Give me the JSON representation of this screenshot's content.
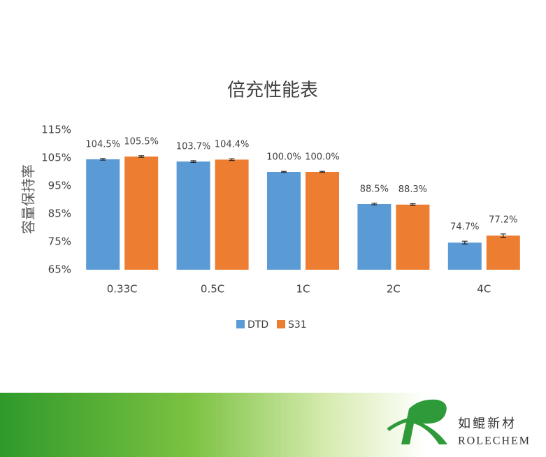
{
  "chart_data": {
    "type": "bar",
    "title": "倍充性能表",
    "y_label": "容量保持率",
    "categories": [
      "0.33C",
      "0.5C",
      "1C",
      "2C",
      "4C"
    ],
    "series": [
      {
        "name": "DTD",
        "color": "#5b9bd5",
        "values": [
          104.5,
          103.7,
          100.0,
          88.5,
          74.7
        ],
        "value_labels": [
          "104.5%",
          "103.7%",
          "100.0%",
          "88.5%",
          "74.7%"
        ],
        "errors": [
          0.3,
          0.3,
          0.2,
          0.3,
          0.5
        ]
      },
      {
        "name": "S31",
        "color": "#ed7d31",
        "values": [
          105.5,
          104.4,
          100.0,
          88.3,
          77.2
        ],
        "value_labels": [
          "105.5%",
          "104.4%",
          "100.0%",
          "88.3%",
          "77.2%"
        ],
        "errors": [
          0.3,
          0.3,
          0.2,
          0.3,
          0.6
        ]
      }
    ],
    "ylim": [
      65,
      115
    ],
    "yticks": [
      {
        "value": 65,
        "label": "65%"
      },
      {
        "value": 75,
        "label": "75%"
      },
      {
        "value": 85,
        "label": "85%"
      },
      {
        "value": 95,
        "label": "95%"
      },
      {
        "value": 105,
        "label": "105%"
      },
      {
        "value": 115,
        "label": "115%"
      }
    ],
    "grid": false,
    "legend": "bottom"
  },
  "footer": {
    "brand_cn": "如鲲新材",
    "brand_en": "ROLECHEM"
  }
}
